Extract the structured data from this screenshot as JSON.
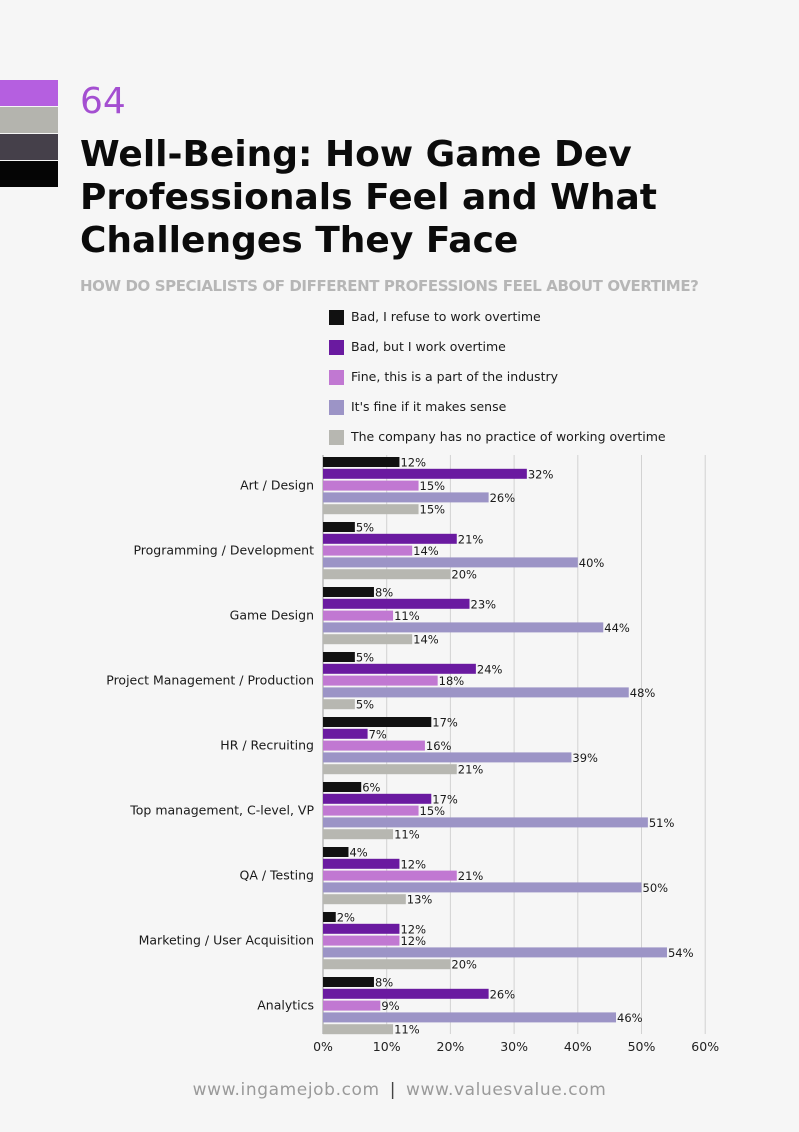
{
  "page_number": "64",
  "title": "Well-Being: How Game Dev Professionals Feel and What Challenges They Face",
  "question": "HOW DO SPECIALISTS OF DIFFERENT PROFESSIONS FEEL ABOUT OVERTIME?",
  "colors": {
    "swatches": [
      "#b55fe0",
      "#b4b4ae",
      "#45404a",
      "#050505"
    ],
    "series": [
      "#111111",
      "#6a1aa0",
      "#c178d2",
      "#9c94c6",
      "#b7b7b1"
    ]
  },
  "footer": {
    "left": "www.ingamejob.com",
    "separator": "|",
    "right": "www.valuesvalue.com"
  },
  "chart_data": {
    "type": "bar",
    "orientation": "horizontal",
    "categories": [
      "Art / Design",
      "Programming / Development",
      "Game Design",
      "Project Management / Production",
      "HR / Recruiting",
      "Top management, C-level, VP",
      "QA / Testing",
      "Marketing / User Acquisition",
      "Analytics"
    ],
    "series": [
      {
        "name": "Bad, I refuse to work overtime",
        "values": [
          12,
          5,
          8,
          5,
          17,
          6,
          4,
          2,
          8
        ]
      },
      {
        "name": "Bad, but I work overtime",
        "values": [
          32,
          21,
          23,
          24,
          7,
          17,
          12,
          12,
          26
        ]
      },
      {
        "name": "Fine, this is a part of the industry",
        "values": [
          15,
          14,
          11,
          18,
          16,
          15,
          21,
          12,
          9
        ]
      },
      {
        "name": "It's fine if it makes sense",
        "values": [
          26,
          40,
          44,
          48,
          39,
          51,
          50,
          54,
          46
        ]
      },
      {
        "name": "The company has no practice of working overtime",
        "values": [
          15,
          20,
          14,
          5,
          21,
          11,
          13,
          20,
          11
        ]
      }
    ],
    "xlim": [
      0,
      60
    ],
    "xticks": [
      "0%",
      "10%",
      "20%",
      "30%",
      "40%",
      "50%",
      "60%"
    ],
    "value_suffix": "%",
    "grid": "vertical",
    "legend": "top"
  }
}
